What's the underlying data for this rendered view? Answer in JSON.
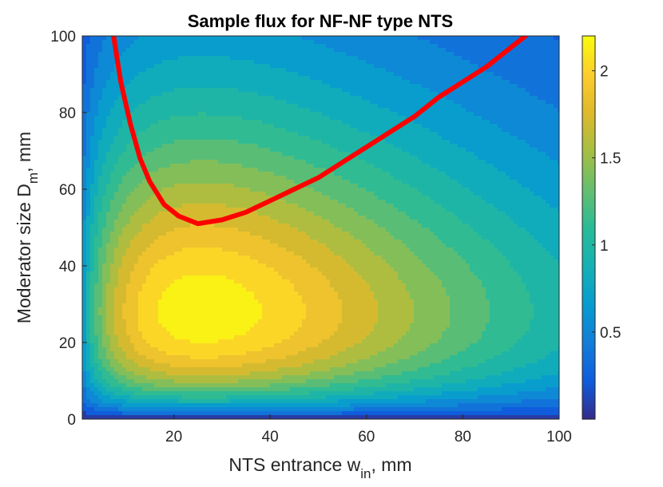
{
  "chart_data": {
    "type": "heatmap",
    "subtype": "filled-contour",
    "title": "Sample flux for NF-NF type NTS",
    "xlabel": {
      "main": "NTS entrance w",
      "sub": "in",
      "suffix": ", mm"
    },
    "ylabel": {
      "main": "Moderator size D",
      "sub": "m",
      "suffix": ", mm"
    },
    "xlim": [
      1,
      100
    ],
    "ylim": [
      0,
      100
    ],
    "xticks": [
      20,
      40,
      60,
      80,
      100
    ],
    "yticks": [
      0,
      20,
      40,
      60,
      80,
      100
    ],
    "colorbar": {
      "colormap": "parula",
      "range": [
        0,
        2.2
      ],
      "ticks": [
        0.5,
        1,
        1.5,
        2
      ]
    },
    "contour_levels": [
      0.15,
      0.3,
      0.45,
      0.6,
      0.75,
      0.9,
      1.05,
      1.2,
      1.35,
      1.5,
      1.65,
      1.8,
      1.95,
      2.1
    ],
    "peak": {
      "x": 26,
      "y": 28,
      "value": 2.2
    },
    "optimum_curve": {
      "color": "#ff0000",
      "x": [
        7.5,
        9,
        11,
        13,
        15,
        18,
        21,
        25,
        30,
        35,
        40,
        45,
        50,
        55,
        60,
        65,
        70,
        75,
        80,
        85,
        90,
        93
      ],
      "y": [
        100,
        88,
        77,
        68,
        62,
        56,
        53,
        51,
        52,
        54,
        57,
        60,
        63,
        67,
        71,
        75,
        79,
        84,
        88,
        92,
        97,
        100
      ]
    }
  }
}
